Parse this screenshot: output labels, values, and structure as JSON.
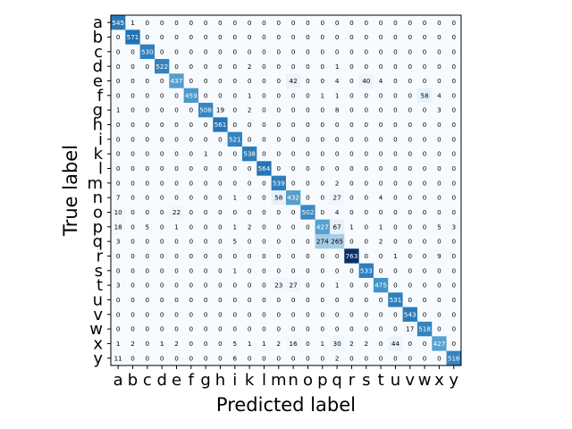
{
  "chart_data": {
    "type": "heatmap",
    "title": "",
    "xlabel": "Predicted label",
    "ylabel": "True label",
    "x_categories": [
      "a",
      "b",
      "c",
      "d",
      "e",
      "f",
      "g",
      "h",
      "i",
      "k",
      "l",
      "m",
      "n",
      "o",
      "p",
      "q",
      "r",
      "s",
      "t",
      "u",
      "v",
      "w",
      "x",
      "y"
    ],
    "y_categories": [
      "a",
      "b",
      "c",
      "d",
      "e",
      "f",
      "g",
      "h",
      "i",
      "k",
      "l",
      "m",
      "n",
      "o",
      "p",
      "q",
      "r",
      "s",
      "t",
      "u",
      "v",
      "w",
      "x",
      "y"
    ],
    "colormap": "Blues",
    "value_range": [
      0,
      763
    ],
    "values": [
      [
        545,
        1,
        0,
        0,
        0,
        0,
        0,
        0,
        0,
        0,
        0,
        0,
        0,
        0,
        0,
        0,
        0,
        0,
        0,
        0,
        0,
        0,
        0,
        0
      ],
      [
        0,
        571,
        0,
        0,
        0,
        0,
        0,
        0,
        0,
        0,
        0,
        0,
        0,
        0,
        0,
        0,
        0,
        0,
        0,
        0,
        0,
        0,
        0,
        0
      ],
      [
        0,
        0,
        530,
        0,
        0,
        0,
        0,
        0,
        0,
        0,
        0,
        0,
        0,
        0,
        0,
        0,
        0,
        0,
        0,
        0,
        0,
        0,
        0,
        0
      ],
      [
        0,
        0,
        0,
        522,
        0,
        0,
        0,
        0,
        0,
        2,
        0,
        0,
        0,
        0,
        0,
        1,
        0,
        0,
        0,
        0,
        0,
        0,
        0,
        0
      ],
      [
        0,
        0,
        0,
        0,
        437,
        0,
        0,
        0,
        0,
        0,
        0,
        0,
        42,
        0,
        0,
        4,
        0,
        40,
        4,
        0,
        0,
        0,
        0,
        0
      ],
      [
        0,
        0,
        0,
        0,
        0,
        459,
        0,
        0,
        0,
        1,
        0,
        0,
        0,
        0,
        1,
        1,
        0,
        0,
        0,
        0,
        0,
        58,
        4,
        0
      ],
      [
        1,
        0,
        0,
        0,
        0,
        0,
        508,
        19,
        0,
        2,
        0,
        0,
        0,
        0,
        0,
        8,
        0,
        0,
        0,
        0,
        0,
        0,
        3,
        0
      ],
      [
        0,
        0,
        0,
        0,
        0,
        0,
        0,
        561,
        0,
        0,
        0,
        0,
        0,
        0,
        0,
        0,
        0,
        0,
        0,
        0,
        0,
        0,
        0,
        0
      ],
      [
        0,
        0,
        0,
        0,
        0,
        0,
        0,
        0,
        521,
        0,
        0,
        0,
        0,
        0,
        0,
        0,
        0,
        0,
        0,
        0,
        0,
        0,
        0,
        0
      ],
      [
        0,
        0,
        0,
        0,
        0,
        0,
        1,
        0,
        0,
        538,
        0,
        0,
        0,
        0,
        0,
        0,
        0,
        0,
        0,
        0,
        0,
        0,
        0,
        0
      ],
      [
        0,
        0,
        0,
        0,
        0,
        0,
        0,
        0,
        0,
        0,
        564,
        0,
        0,
        0,
        0,
        0,
        0,
        0,
        0,
        0,
        0,
        0,
        0,
        0
      ],
      [
        0,
        0,
        0,
        0,
        0,
        0,
        0,
        0,
        0,
        0,
        0,
        539,
        0,
        0,
        0,
        2,
        0,
        0,
        0,
        0,
        0,
        0,
        0,
        0
      ],
      [
        7,
        0,
        0,
        0,
        0,
        0,
        0,
        0,
        1,
        0,
        0,
        58,
        432,
        0,
        0,
        27,
        0,
        0,
        4,
        0,
        0,
        0,
        0,
        0
      ],
      [
        10,
        0,
        0,
        0,
        22,
        0,
        0,
        0,
        0,
        0,
        0,
        0,
        0,
        502,
        0,
        4,
        0,
        0,
        0,
        0,
        0,
        0,
        0,
        0
      ],
      [
        18,
        0,
        5,
        0,
        1,
        0,
        0,
        0,
        1,
        2,
        0,
        0,
        0,
        0,
        427,
        67,
        1,
        0,
        1,
        0,
        0,
        0,
        5,
        3
      ],
      [
        3,
        0,
        0,
        0,
        0,
        0,
        0,
        0,
        5,
        0,
        0,
        0,
        0,
        0,
        274,
        265,
        0,
        0,
        2,
        0,
        0,
        0,
        0,
        0
      ],
      [
        0,
        0,
        0,
        0,
        0,
        0,
        0,
        0,
        0,
        0,
        0,
        0,
        0,
        0,
        0,
        0,
        763,
        0,
        0,
        1,
        0,
        0,
        9,
        0
      ],
      [
        0,
        0,
        0,
        0,
        0,
        0,
        0,
        0,
        1,
        0,
        0,
        0,
        0,
        0,
        0,
        0,
        0,
        533,
        0,
        0,
        0,
        0,
        0,
        0
      ],
      [
        3,
        0,
        0,
        0,
        0,
        0,
        0,
        0,
        0,
        0,
        0,
        23,
        27,
        0,
        0,
        1,
        0,
        0,
        475,
        0,
        0,
        0,
        0,
        0
      ],
      [
        0,
        0,
        0,
        0,
        0,
        0,
        0,
        0,
        0,
        0,
        0,
        0,
        0,
        0,
        0,
        0,
        0,
        0,
        0,
        531,
        0,
        0,
        0,
        0
      ],
      [
        0,
        0,
        0,
        0,
        0,
        0,
        0,
        0,
        0,
        0,
        0,
        0,
        0,
        0,
        0,
        0,
        0,
        0,
        0,
        0,
        543,
        0,
        0,
        0
      ],
      [
        0,
        0,
        0,
        0,
        0,
        0,
        0,
        0,
        0,
        0,
        0,
        0,
        0,
        0,
        0,
        0,
        0,
        0,
        0,
        0,
        17,
        518,
        0,
        0
      ],
      [
        1,
        2,
        0,
        1,
        2,
        0,
        0,
        0,
        5,
        1,
        1,
        2,
        16,
        0,
        1,
        30,
        2,
        2,
        0,
        44,
        0,
        0,
        427,
        0
      ],
      [
        11,
        0,
        0,
        0,
        0,
        0,
        0,
        0,
        6,
        0,
        0,
        0,
        0,
        0,
        0,
        2,
        0,
        0,
        0,
        0,
        0,
        0,
        0,
        516
      ]
    ]
  }
}
